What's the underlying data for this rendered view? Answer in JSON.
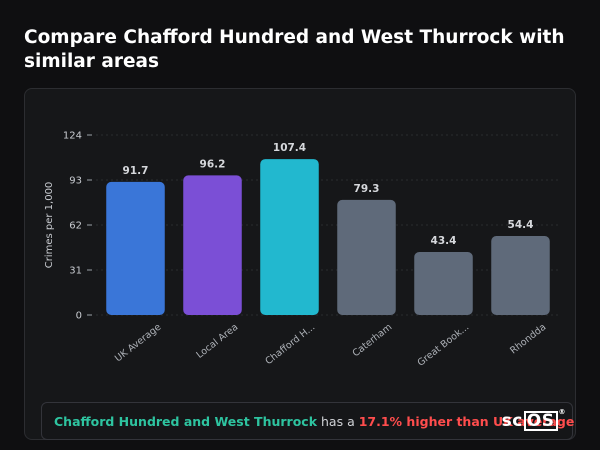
{
  "title": "Compare Chafford Hundred and West Thurrock with similar areas",
  "chart_data": {
    "type": "bar",
    "ylabel": "Crimes per 1,000",
    "xlabel": "",
    "yticks": [
      0,
      31,
      62,
      93,
      124
    ],
    "ylim": [
      0,
      124
    ],
    "categories": [
      "UK Average",
      "Local Area",
      "Chafford H...",
      "Caterham",
      "Great Book...",
      "Rhondda"
    ],
    "values": [
      91.7,
      96.2,
      107.4,
      79.3,
      43.4,
      54.4
    ],
    "value_labels": [
      "91.7",
      "96.2",
      "107.4",
      "79.3",
      "43.4",
      "54.4"
    ],
    "colors": [
      "#3a76d8",
      "#7b4fd6",
      "#22b8cf",
      "#5f6a7a",
      "#5f6a7a",
      "#5f6a7a"
    ],
    "grid": true
  },
  "footer": {
    "area_name": "Chafford Hundred and West Thurrock",
    "middle_text": " has a ",
    "comparison": "17.1% higher than UK average"
  },
  "logo": {
    "prefix": "sc",
    "boxed": "OS",
    "mark": "®"
  }
}
